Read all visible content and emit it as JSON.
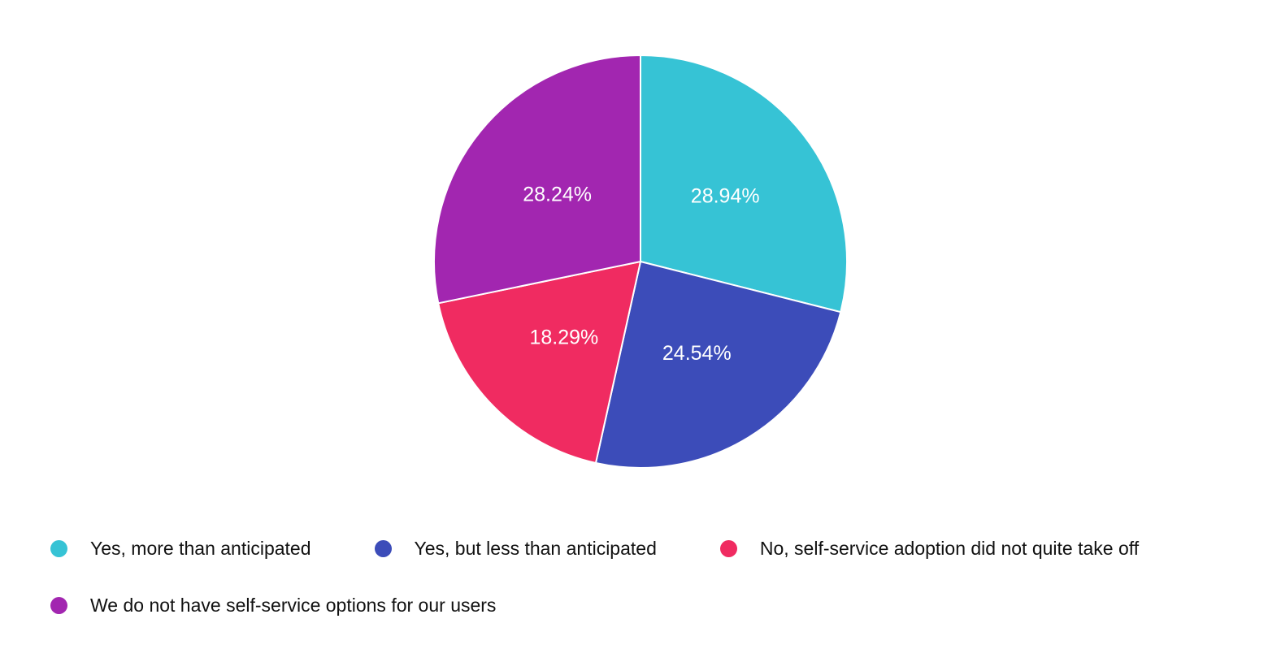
{
  "chart_data": {
    "type": "pie",
    "title": "",
    "background_color": "#FFFFFF",
    "direction": "clockwise",
    "start_angle_deg": -90,
    "legend_position": "bottom-left",
    "slice_label_color": "#FFFFFF",
    "slice_border_color": "#FFFFFF",
    "labels": [
      "Yes, more than anticipated",
      "Yes, but less than anticipated",
      "No, self-service adoption did not quite take off",
      "We do not have self-service options for our users"
    ],
    "values": [
      28.94,
      24.54,
      18.29,
      28.24
    ],
    "value_labels": [
      "28.94%",
      "24.54%",
      "18.29%",
      "28.24%"
    ],
    "colors": [
      "#36C3D5",
      "#3C4CB9",
      "#F02B61",
      "#A226B0"
    ]
  }
}
